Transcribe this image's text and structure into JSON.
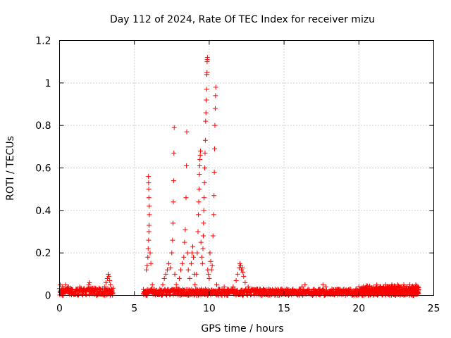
{
  "chart_data": {
    "type": "scatter",
    "title": "Day 112 of 2024, Rate Of TEC Index for receiver mizu",
    "xlabel": "GPS time / hours",
    "ylabel": "ROTI / TECUs",
    "xlim": [
      0,
      25
    ],
    "ylim": [
      0,
      1.2
    ],
    "xticks": [
      0,
      5,
      10,
      15,
      20,
      25
    ],
    "yticks": [
      0,
      0.2,
      0.4,
      0.6,
      0.8,
      1,
      1.2
    ],
    "xtick_labels": [
      "0",
      "5",
      "10",
      "15",
      "20",
      "25"
    ],
    "ytick_labels": [
      "0",
      "0.2",
      "0.4",
      "0.6",
      "0.8",
      "1",
      "1.2"
    ],
    "grid": true,
    "marker": "+",
    "color": "#ff0000",
    "series": [
      {
        "name": "ROTI",
        "points": [
          [
            0.05,
            0.05
          ],
          [
            0.12,
            0.03
          ],
          [
            0.2,
            0.04
          ],
          [
            0.3,
            0.02
          ],
          [
            0.4,
            0.05
          ],
          [
            0.5,
            0.03
          ],
          [
            0.6,
            0.04
          ],
          [
            0.7,
            0.02
          ],
          [
            0.8,
            0.03
          ],
          [
            0.9,
            0.01
          ],
          [
            1.0,
            0.02
          ],
          [
            1.1,
            0.03
          ],
          [
            1.2,
            0.02
          ],
          [
            1.35,
            0.04
          ],
          [
            1.5,
            0.02
          ],
          [
            1.65,
            0.03
          ],
          [
            1.8,
            0.02
          ],
          [
            1.95,
            0.05
          ],
          [
            2.0,
            0.06
          ],
          [
            2.1,
            0.03
          ],
          [
            2.25,
            0.02
          ],
          [
            2.4,
            0.03
          ],
          [
            2.55,
            0.02
          ],
          [
            2.7,
            0.03
          ],
          [
            2.85,
            0.02
          ],
          [
            3.0,
            0.04
          ],
          [
            3.1,
            0.06
          ],
          [
            3.2,
            0.08
          ],
          [
            3.25,
            0.1
          ],
          [
            3.3,
            0.09
          ],
          [
            3.35,
            0.07
          ],
          [
            3.4,
            0.05
          ],
          [
            3.45,
            0.03
          ],
          [
            3.5,
            0.02
          ],
          [
            3.55,
            0.01
          ],
          [
            5.6,
            0.01
          ],
          [
            5.7,
            0.02
          ],
          [
            5.8,
            0.12
          ],
          [
            5.85,
            0.14
          ],
          [
            5.9,
            0.18
          ],
          [
            5.92,
            0.22
          ],
          [
            5.95,
            0.26
          ],
          [
            5.97,
            0.3
          ],
          [
            5.98,
            0.33
          ],
          [
            6.0,
            0.38
          ],
          [
            5.99,
            0.42
          ],
          [
            5.97,
            0.46
          ],
          [
            5.96,
            0.5
          ],
          [
            5.95,
            0.53
          ],
          [
            5.94,
            0.56
          ],
          [
            6.05,
            0.2
          ],
          [
            6.1,
            0.15
          ],
          [
            6.2,
            0.05
          ],
          [
            6.3,
            0.02
          ],
          [
            6.5,
            0.01
          ],
          [
            6.7,
            0.03
          ],
          [
            6.9,
            0.05
          ],
          [
            7.0,
            0.08
          ],
          [
            7.1,
            0.1
          ],
          [
            7.2,
            0.12
          ],
          [
            7.3,
            0.15
          ],
          [
            7.4,
            0.13
          ],
          [
            7.5,
            0.2
          ],
          [
            7.55,
            0.26
          ],
          [
            7.58,
            0.34
          ],
          [
            7.6,
            0.44
          ],
          [
            7.62,
            0.54
          ],
          [
            7.64,
            0.67
          ],
          [
            7.66,
            0.79
          ],
          [
            7.7,
            0.1
          ],
          [
            7.8,
            0.05
          ],
          [
            7.9,
            0.03
          ],
          [
            8.0,
            0.08
          ],
          [
            8.1,
            0.12
          ],
          [
            8.2,
            0.15
          ],
          [
            8.3,
            0.18
          ],
          [
            8.35,
            0.25
          ],
          [
            8.4,
            0.31
          ],
          [
            8.45,
            0.46
          ],
          [
            8.48,
            0.61
          ],
          [
            8.5,
            0.77
          ],
          [
            8.55,
            0.2
          ],
          [
            8.6,
            0.12
          ],
          [
            8.7,
            0.08
          ],
          [
            8.8,
            0.15
          ],
          [
            8.85,
            0.2
          ],
          [
            8.9,
            0.23
          ],
          [
            8.95,
            0.18
          ],
          [
            9.0,
            0.1
          ],
          [
            9.05,
            0.05
          ],
          [
            9.1,
            0.03
          ],
          [
            9.15,
            0.1
          ],
          [
            9.2,
            0.2
          ],
          [
            9.25,
            0.3
          ],
          [
            9.28,
            0.38
          ],
          [
            9.3,
            0.44
          ],
          [
            9.32,
            0.5
          ],
          [
            9.34,
            0.57
          ],
          [
            9.36,
            0.61
          ],
          [
            9.38,
            0.64
          ],
          [
            9.4,
            0.66
          ],
          [
            9.42,
            0.68
          ],
          [
            9.45,
            0.25
          ],
          [
            9.5,
            0.18
          ],
          [
            9.55,
            0.15
          ],
          [
            9.58,
            0.22
          ],
          [
            9.6,
            0.28
          ],
          [
            9.62,
            0.34
          ],
          [
            9.64,
            0.4
          ],
          [
            9.66,
            0.46
          ],
          [
            9.68,
            0.53
          ],
          [
            9.7,
            0.6
          ],
          [
            9.72,
            0.67
          ],
          [
            9.74,
            0.73
          ],
          [
            9.76,
            0.82
          ],
          [
            9.78,
            0.86
          ],
          [
            9.8,
            0.92
          ],
          [
            9.82,
            0.97
          ],
          [
            9.84,
            1.04
          ],
          [
            9.85,
            1.05
          ],
          [
            9.86,
            1.1
          ],
          [
            9.87,
            1.11
          ],
          [
            9.88,
            1.12
          ],
          [
            9.9,
            0.12
          ],
          [
            9.95,
            0.1
          ],
          [
            10.0,
            0.08
          ],
          [
            10.05,
            0.2
          ],
          [
            10.1,
            0.16
          ],
          [
            10.15,
            0.12
          ],
          [
            10.2,
            0.14
          ],
          [
            10.25,
            0.28
          ],
          [
            10.3,
            0.38
          ],
          [
            10.32,
            0.47
          ],
          [
            10.34,
            0.58
          ],
          [
            10.36,
            0.69
          ],
          [
            10.38,
            0.8
          ],
          [
            10.4,
            0.88
          ],
          [
            10.42,
            0.94
          ],
          [
            10.44,
            0.98
          ],
          [
            10.5,
            0.05
          ],
          [
            10.6,
            0.03
          ],
          [
            10.8,
            0.02
          ],
          [
            11.0,
            0.04
          ],
          [
            11.2,
            0.03
          ],
          [
            11.4,
            0.02
          ],
          [
            11.6,
            0.04
          ],
          [
            11.8,
            0.07
          ],
          [
            11.9,
            0.1
          ],
          [
            12.0,
            0.13
          ],
          [
            12.05,
            0.15
          ],
          [
            12.1,
            0.14
          ],
          [
            12.15,
            0.12
          ],
          [
            12.2,
            0.13
          ],
          [
            12.25,
            0.11
          ],
          [
            12.3,
            0.09
          ],
          [
            12.4,
            0.06
          ],
          [
            12.6,
            0.04
          ],
          [
            12.8,
            0.03
          ],
          [
            13.0,
            0.02
          ],
          [
            13.2,
            0.03
          ],
          [
            13.4,
            0.02
          ],
          [
            13.6,
            0.03
          ],
          [
            13.8,
            0.02
          ],
          [
            14.0,
            0.03
          ],
          [
            14.2,
            0.02
          ],
          [
            14.4,
            0.03
          ],
          [
            14.6,
            0.02
          ],
          [
            14.8,
            0.03
          ],
          [
            15.0,
            0.02
          ],
          [
            15.2,
            0.03
          ],
          [
            15.4,
            0.02
          ],
          [
            15.6,
            0.03
          ],
          [
            15.8,
            0.02
          ],
          [
            16.0,
            0.03
          ],
          [
            16.2,
            0.04
          ],
          [
            16.4,
            0.05
          ],
          [
            16.6,
            0.03
          ],
          [
            16.8,
            0.02
          ],
          [
            17.0,
            0.03
          ],
          [
            17.2,
            0.02
          ],
          [
            17.4,
            0.03
          ],
          [
            17.6,
            0.05
          ],
          [
            17.8,
            0.04
          ],
          [
            18.0,
            0.02
          ],
          [
            18.2,
            0.03
          ],
          [
            18.4,
            0.02
          ],
          [
            18.6,
            0.03
          ],
          [
            18.8,
            0.02
          ],
          [
            19.0,
            0.03
          ],
          [
            19.2,
            0.02
          ],
          [
            19.4,
            0.03
          ],
          [
            19.6,
            0.02
          ],
          [
            19.8,
            0.03
          ],
          [
            20.0,
            0.02
          ],
          [
            20.2,
            0.03
          ],
          [
            20.4,
            0.02
          ],
          [
            20.6,
            0.03
          ],
          [
            20.8,
            0.02
          ],
          [
            21.0,
            0.04
          ],
          [
            21.2,
            0.05
          ],
          [
            21.4,
            0.04
          ],
          [
            21.6,
            0.03
          ],
          [
            21.8,
            0.05
          ],
          [
            22.0,
            0.04
          ],
          [
            22.2,
            0.05
          ],
          [
            22.4,
            0.04
          ],
          [
            22.6,
            0.05
          ],
          [
            22.8,
            0.04
          ],
          [
            23.0,
            0.05
          ],
          [
            23.2,
            0.04
          ],
          [
            23.4,
            0.05
          ],
          [
            23.6,
            0.04
          ],
          [
            23.8,
            0.05
          ],
          [
            23.95,
            0.04
          ]
        ],
        "bands": [
          {
            "x_start": 0.0,
            "x_end": 3.6,
            "y_min": 0.0,
            "y_max": 0.035
          },
          {
            "x_start": 5.6,
            "x_end": 11.0,
            "y_min": 0.0,
            "y_max": 0.03
          },
          {
            "x_start": 11.0,
            "x_end": 24.0,
            "y_min": 0.0,
            "y_max": 0.03
          },
          {
            "x_start": 20.0,
            "x_end": 24.0,
            "y_min": 0.0,
            "y_max": 0.045
          }
        ]
      }
    ]
  }
}
